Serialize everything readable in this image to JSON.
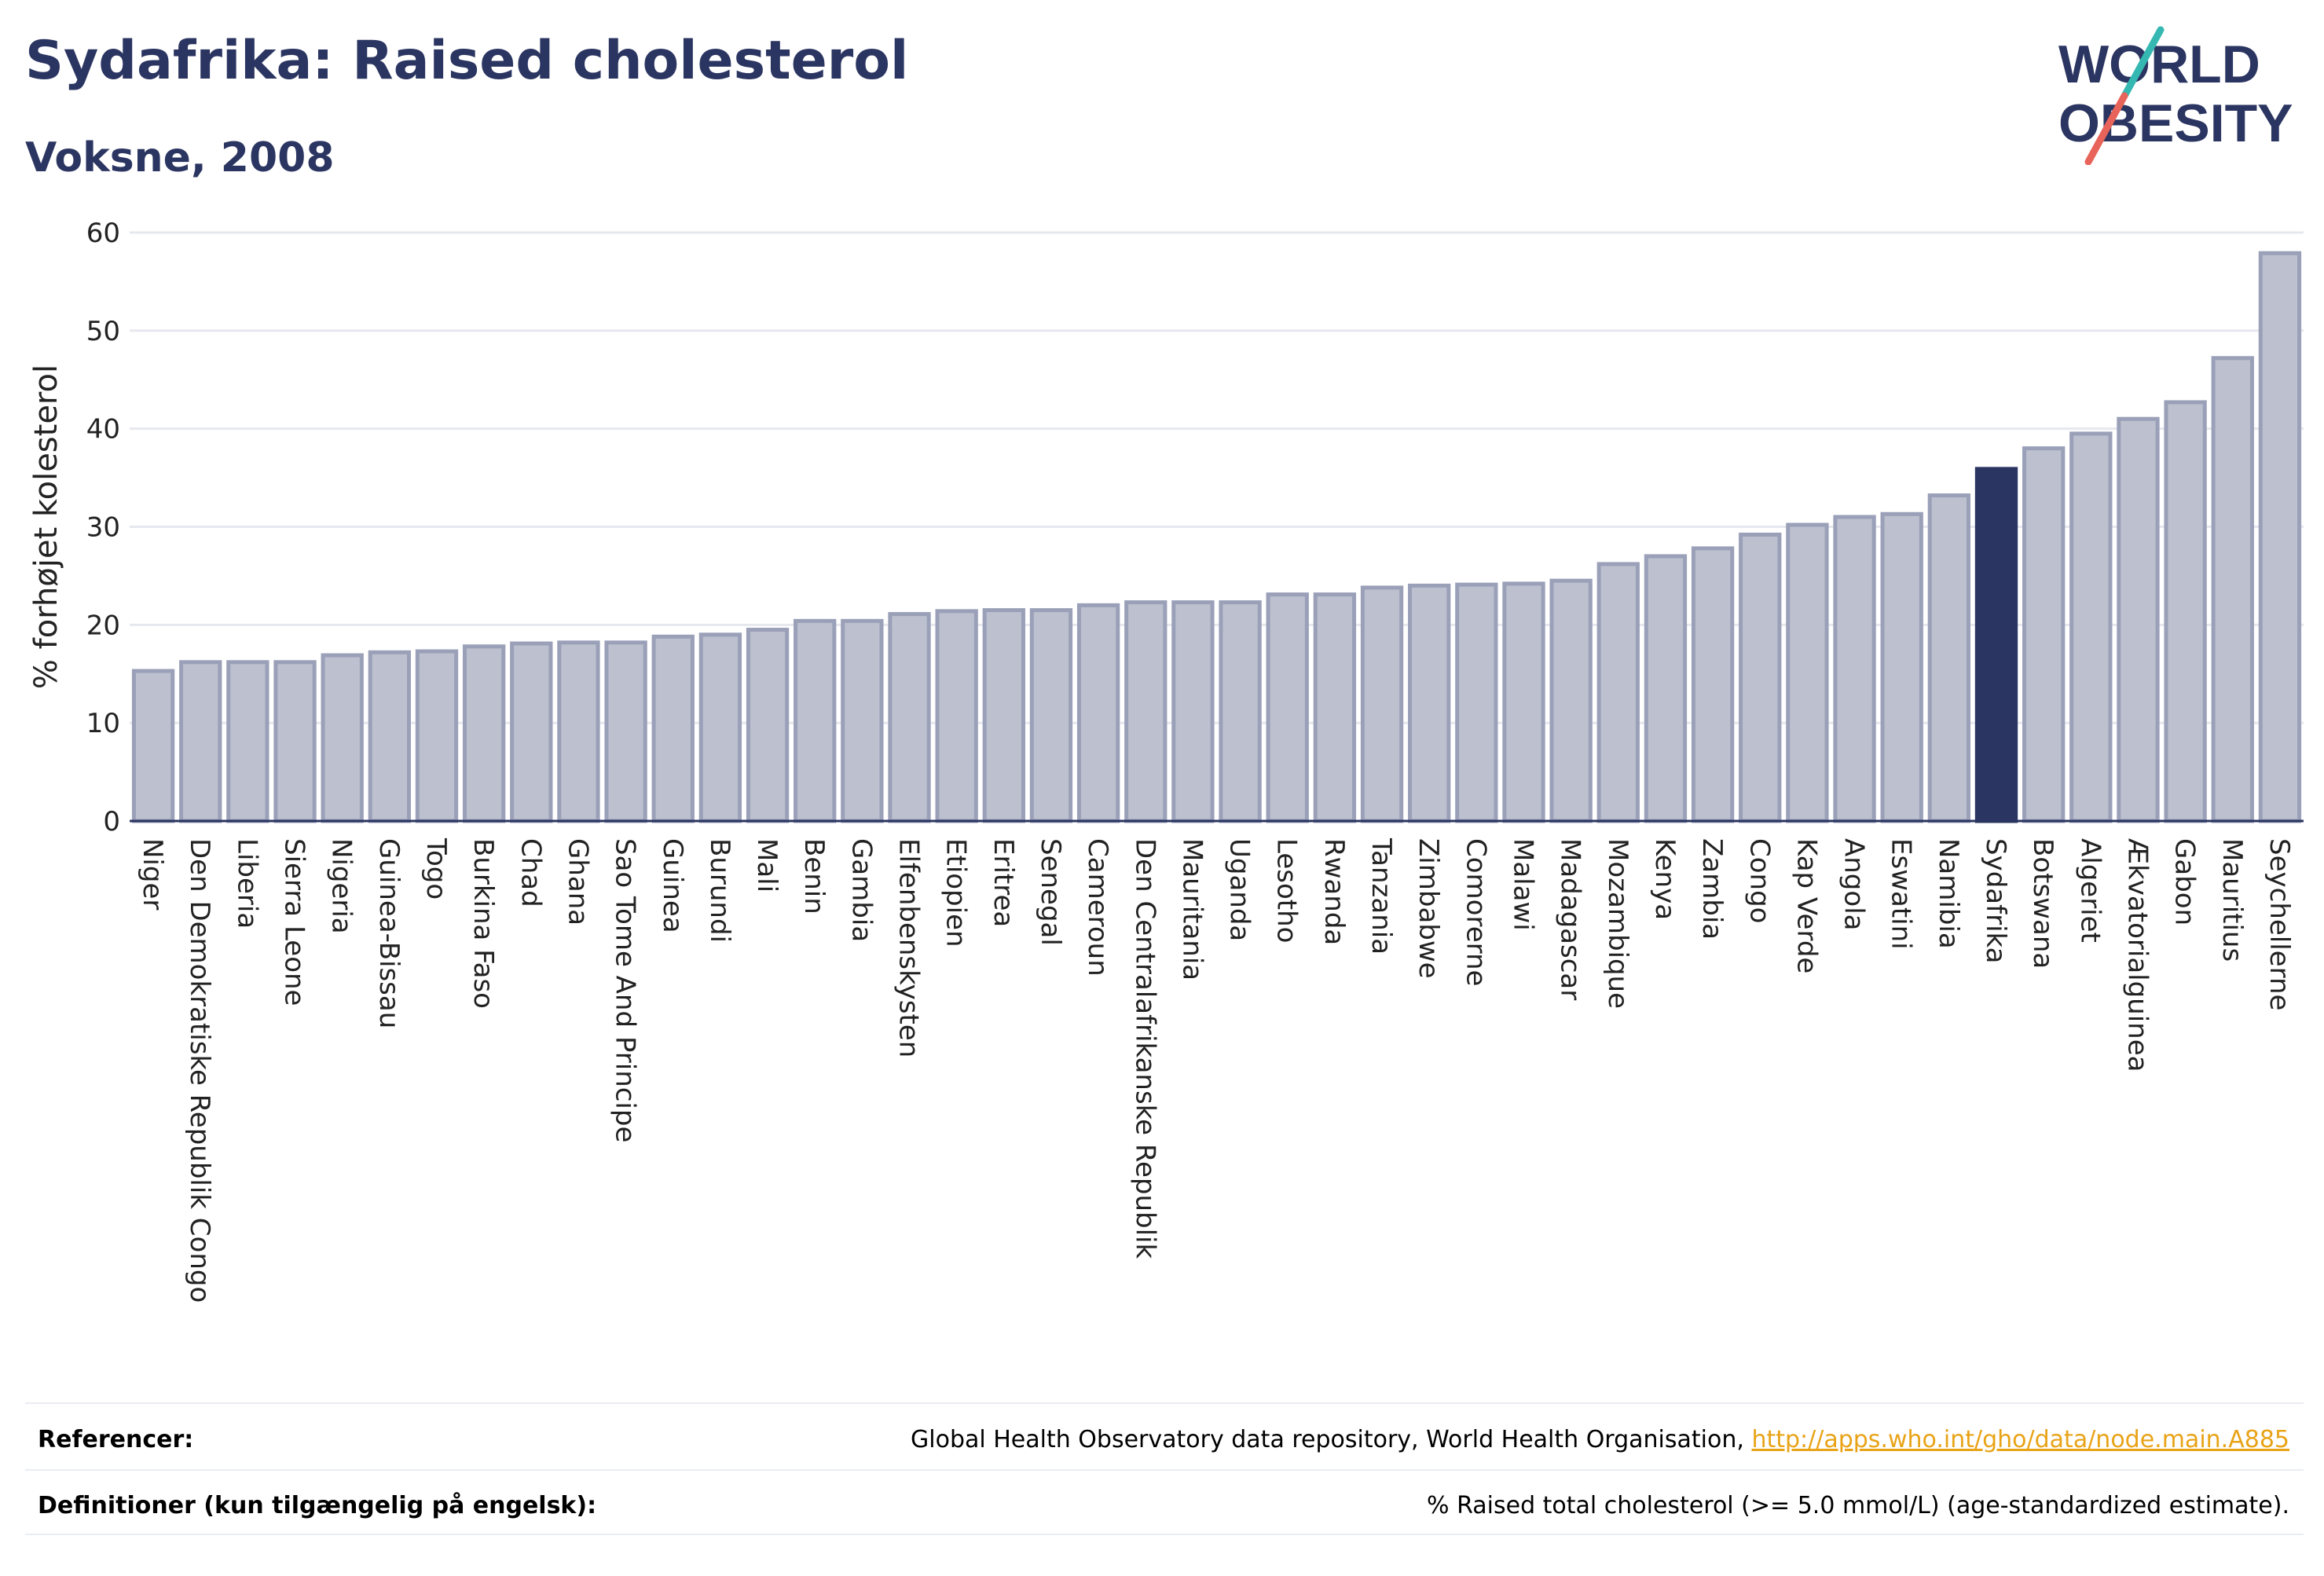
{
  "title": "Sydafrika: Raised cholesterol",
  "subtitle": "Voksne, 2008",
  "logo": {
    "line1": "WORLD",
    "line2": "OBESITY",
    "accent_teal": "#35b8b1",
    "accent_red": "#e8645a"
  },
  "colors": {
    "bar": "#bcc0cf",
    "bar_border": "#9aa0b8",
    "highlight": "#2b3561",
    "grid": "#e6e8ef",
    "text": "#2b3561"
  },
  "chart_data": {
    "type": "bar",
    "ylabel": "% forhøjet kolesterol",
    "ylim": [
      0,
      60
    ],
    "yticks": [
      0,
      10,
      20,
      30,
      40,
      50,
      60
    ],
    "grid": true,
    "highlight": "Sydafrika",
    "categories": [
      "Niger",
      "Den Demokratiske Republik Congo",
      "Liberia",
      "Sierra Leone",
      "Nigeria",
      "Guinea-Bissau",
      "Togo",
      "Burkina Faso",
      "Chad",
      "Ghana",
      "Sao Tome And Principe",
      "Guinea",
      "Burundi",
      "Mali",
      "Benin",
      "Gambia",
      "Elfenbenskysten",
      "Etiopien",
      "Eritrea",
      "Senegal",
      "Cameroun",
      "Den Centralafrikanske Republik",
      "Mauritania",
      "Uganda",
      "Lesotho",
      "Rwanda",
      "Tanzania",
      "Zimbabwe",
      "Comorerne",
      "Malawi",
      "Madagascar",
      "Mozambique",
      "Kenya",
      "Zambia",
      "Congo",
      "Kap Verde",
      "Angola",
      "Eswatini",
      "Namibia",
      "Sydafrika",
      "Botswana",
      "Algeriet",
      "Ækvatorialguinea",
      "Gabon",
      "Mauritius",
      "Seychellerne"
    ],
    "values": [
      15.3,
      16.2,
      16.2,
      16.2,
      16.9,
      17.2,
      17.3,
      17.8,
      18.1,
      18.2,
      18.2,
      18.8,
      19.0,
      19.5,
      20.4,
      20.4,
      21.1,
      21.4,
      21.5,
      21.5,
      22.0,
      22.3,
      22.3,
      22.3,
      23.1,
      23.1,
      23.8,
      24.0,
      24.1,
      24.2,
      24.5,
      26.2,
      27.0,
      27.8,
      29.2,
      30.2,
      31.0,
      31.3,
      33.2,
      35.9,
      38.0,
      39.5,
      41.0,
      42.7,
      47.2,
      57.9
    ]
  },
  "footer": {
    "references_label": "Referencer:",
    "references_text": "Global Health Observatory data repository, World Health Organisation, ",
    "references_link": "http://apps.who.int/gho/data/node.main.A885",
    "definitions_label": "Definitioner (kun tilgængelig på engelsk):",
    "definitions_text": "% Raised total cholesterol (>= 5.0 mmol/L) (age-standardized estimate)."
  }
}
